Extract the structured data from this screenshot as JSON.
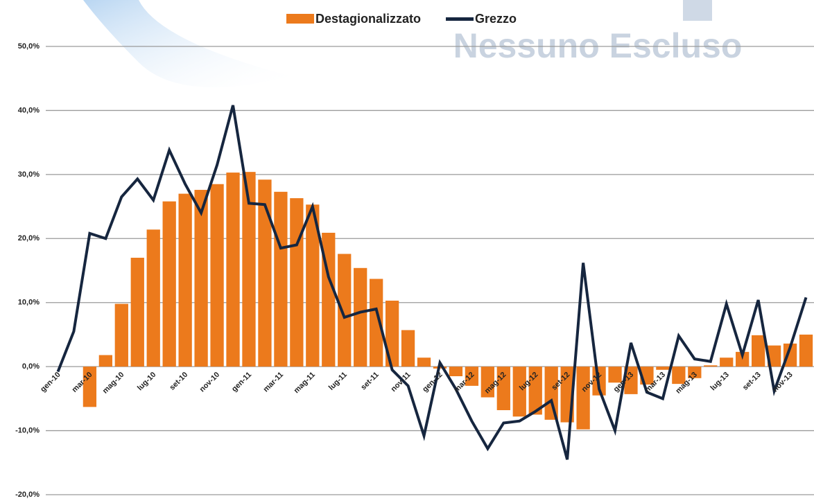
{
  "chart_data": {
    "type": "bar_line",
    "watermark": "Nessuno Escluso",
    "categories": [
      "gen-10",
      null,
      "mar-10",
      null,
      "mag-10",
      null,
      "lug-10",
      null,
      "set-10",
      null,
      "nov-10",
      null,
      "gen-11",
      null,
      "mar-11",
      null,
      "mag-11",
      null,
      "lug-11",
      null,
      "set-11",
      null,
      "nov-11",
      null,
      "gen-12",
      null,
      "mar-12",
      null,
      "mag-12",
      null,
      "lug-12",
      null,
      "set-12",
      null,
      "nov-12",
      null,
      "gen-13",
      null,
      "mar-13",
      null,
      "mag-13",
      null,
      "lug-13",
      null,
      "set-13",
      null,
      "nov-13",
      null
    ],
    "series": [
      {
        "name": "Destagionalizzato",
        "kind": "bar",
        "color": "#ec7a1c",
        "values": [
          0,
          0,
          -6.3,
          1.8,
          9.8,
          17.0,
          21.4,
          25.8,
          27.0,
          27.6,
          28.5,
          30.3,
          30.4,
          29.2,
          27.3,
          26.3,
          25.3,
          20.9,
          17.6,
          15.4,
          13.7,
          10.3,
          5.7,
          1.4,
          -0.3,
          -1.5,
          -3.0,
          -4.8,
          -6.8,
          -7.8,
          -7.5,
          -8.3,
          -8.7,
          -9.8,
          -4.5,
          -2.5,
          -4.3,
          -2.8,
          -0.5,
          -2.7,
          -1.8,
          0.2,
          1.4,
          2.3,
          4.9,
          3.3,
          3.6,
          5.0
        ]
      },
      {
        "name": "Grezzo",
        "kind": "line",
        "color": "#16263f",
        "values": [
          -0.8,
          5.5,
          20.8,
          20.0,
          26.5,
          29.3,
          26.0,
          33.8,
          28.5,
          24.0,
          31.5,
          40.8,
          25.5,
          25.3,
          18.5,
          19.0,
          25.0,
          14.0,
          7.7,
          8.5,
          9.0,
          -0.5,
          -3.0,
          -10.8,
          0.6,
          -3.5,
          -8.5,
          -12.8,
          -8.8,
          -8.5,
          -7.0,
          -5.3,
          -14.5,
          16.2,
          -3.5,
          -10.0,
          3.7,
          -4.0,
          -5.0,
          4.8,
          1.2,
          0.8,
          9.8,
          1.8,
          10.4,
          -3.8,
          3.0,
          10.8
        ]
      }
    ],
    "ylim": [
      -20,
      50
    ],
    "yticks": [
      {
        "value": -20,
        "label": "-20,0%"
      },
      {
        "value": -10,
        "label": "-10,0%"
      },
      {
        "value": 0,
        "label": "0,0%"
      },
      {
        "value": 10,
        "label": "10,0%"
      },
      {
        "value": 20,
        "label": "20,0%"
      },
      {
        "value": 30,
        "label": "30,0%"
      },
      {
        "value": 40,
        "label": "40,0%"
      },
      {
        "value": 50,
        "label": "50,0%"
      }
    ],
    "grid": true,
    "legend": "top"
  }
}
